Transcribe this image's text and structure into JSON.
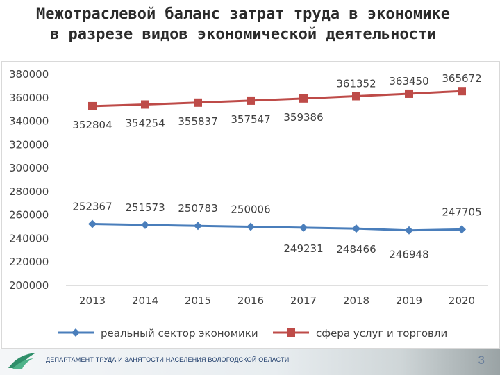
{
  "slide": {
    "title_line1": "Межотраслевой баланс затрат труда в экономике",
    "title_line2": "в разрезе видов экономической деятельности"
  },
  "footer": {
    "organization": "ДЕПАРТАМЕНТ ТРУДА И ЗАНЯТОСТИ НАСЕЛЕНИЯ ВОЛОГОДСКОЙ ОБЛАСТИ",
    "page_number": "3"
  },
  "chart_data": {
    "type": "line",
    "title": "",
    "xlabel": "",
    "ylabel": "",
    "categories": [
      "2013",
      "2014",
      "2015",
      "2016",
      "2017",
      "2018",
      "2019",
      "2020"
    ],
    "ylim": [
      200000,
      380000
    ],
    "yticks": [
      "200000",
      "220000",
      "240000",
      "260000",
      "280000",
      "300000",
      "320000",
      "340000",
      "360000",
      "380000"
    ],
    "grid": false,
    "legend_position": "bottom",
    "series": [
      {
        "name": "реальный сектор экономики",
        "color": "#4a7ebb",
        "marker": "diamond",
        "values": [
          252367,
          251573,
          250783,
          250006,
          249231,
          248466,
          246948,
          247705
        ]
      },
      {
        "name": "сфера услуг и торговли",
        "color": "#be4b48",
        "marker": "square",
        "values": [
          352804,
          354254,
          355837,
          357547,
          359386,
          361352,
          363450,
          365672
        ]
      }
    ]
  }
}
